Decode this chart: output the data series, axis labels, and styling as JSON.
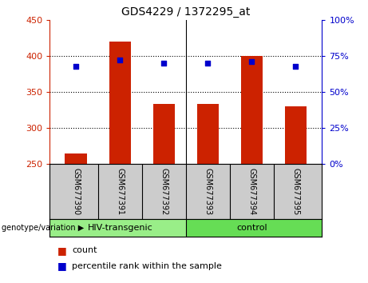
{
  "title": "GDS4229 / 1372295_at",
  "samples": [
    "GSM677390",
    "GSM677391",
    "GSM677392",
    "GSM677393",
    "GSM677394",
    "GSM677395"
  ],
  "counts": [
    265,
    420,
    333,
    333,
    400,
    330
  ],
  "percentiles": [
    68,
    72,
    70,
    70,
    71,
    68
  ],
  "ylim_left": [
    250,
    450
  ],
  "ylim_right": [
    0,
    100
  ],
  "yticks_left": [
    250,
    300,
    350,
    400,
    450
  ],
  "yticks_right": [
    0,
    25,
    50,
    75,
    100
  ],
  "bar_color": "#CC2200",
  "dot_color": "#0000CC",
  "bar_baseline": 250,
  "group1_label": "HIV-transgenic",
  "group2_label": "control",
  "group1_color": "#99EE88",
  "group2_color": "#66DD55",
  "gray_color": "#CCCCCC",
  "genotype_label": "genotype/variation",
  "legend_count": "count",
  "legend_pct": "percentile rank within the sample",
  "right_axis_color": "#0000CC",
  "left_axis_color": "#CC2200"
}
